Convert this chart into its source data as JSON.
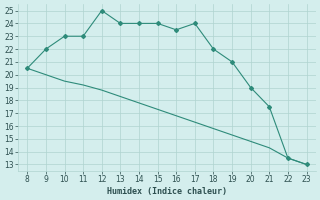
{
  "xlabel": "Humidex (Indice chaleur)",
  "x_values": [
    8,
    9,
    10,
    11,
    12,
    13,
    14,
    15,
    16,
    17,
    18,
    19,
    20,
    21,
    22,
    23
  ],
  "line1_y": [
    20.5,
    22,
    23,
    23,
    25,
    24,
    24,
    24,
    23.5,
    24,
    22,
    21,
    19,
    17.5,
    13.5,
    13
  ],
  "line2_y": [
    20.5,
    20.0,
    19.5,
    19.2,
    18.8,
    18.3,
    17.8,
    17.3,
    16.8,
    16.3,
    15.8,
    15.3,
    14.8,
    14.3,
    13.5,
    13.0
  ],
  "ylim_min": 12.5,
  "ylim_max": 25.5,
  "xlim_min": 7.5,
  "xlim_max": 23.5,
  "yticks": [
    13,
    14,
    15,
    16,
    17,
    18,
    19,
    20,
    21,
    22,
    23,
    24,
    25
  ],
  "xticks": [
    8,
    9,
    10,
    11,
    12,
    13,
    14,
    15,
    16,
    17,
    18,
    19,
    20,
    21,
    22,
    23
  ],
  "line_color": "#2e8b7a",
  "bg_color": "#d4eeed",
  "grid_color": "#afd4d0",
  "font_color": "#2e5050",
  "marker": "D",
  "markersize": 2.0,
  "linewidth": 0.8,
  "tick_fontsize": 5.5,
  "xlabel_fontsize": 6.0
}
